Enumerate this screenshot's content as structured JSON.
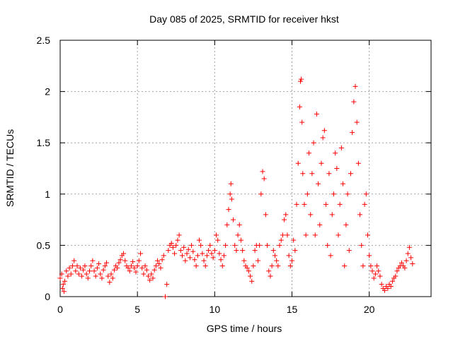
{
  "chart_data": {
    "type": "scatter",
    "title": "Day 085 of 2025, SRMTID for receiver hkst",
    "xlabel": "GPS time / hours",
    "ylabel": "SRMTID / TECUs",
    "xlim": [
      0,
      24
    ],
    "ylim": [
      0,
      2.5
    ],
    "grid": true,
    "marker": "+",
    "marker_color": "#ff0000",
    "x_ticks": [
      0,
      5,
      10,
      15,
      20
    ],
    "x_tick_labels": [
      "0",
      "5",
      "10",
      "15",
      "20"
    ],
    "y_ticks": [
      0,
      0.5,
      1,
      1.5,
      2,
      2.5
    ],
    "y_tick_labels": [
      "0",
      "0.5",
      "1",
      "1.5",
      "2",
      "2.5"
    ],
    "series": [
      {
        "name": "SRMTID",
        "points": [
          [
            0.0,
            0.18
          ],
          [
            0.1,
            0.22
          ],
          [
            0.15,
            0.08
          ],
          [
            0.2,
            0.12
          ],
          [
            0.25,
            0.05
          ],
          [
            0.3,
            0.15
          ],
          [
            0.4,
            0.25
          ],
          [
            0.5,
            0.2
          ],
          [
            0.6,
            0.28
          ],
          [
            0.7,
            0.22
          ],
          [
            0.8,
            0.3
          ],
          [
            0.9,
            0.35
          ],
          [
            1.0,
            0.25
          ],
          [
            1.1,
            0.3
          ],
          [
            1.2,
            0.22
          ],
          [
            1.3,
            0.28
          ],
          [
            1.4,
            0.2
          ],
          [
            1.5,
            0.26
          ],
          [
            1.6,
            0.3
          ],
          [
            1.7,
            0.22
          ],
          [
            1.8,
            0.18
          ],
          [
            1.9,
            0.25
          ],
          [
            2.0,
            0.3
          ],
          [
            2.1,
            0.35
          ],
          [
            2.2,
            0.25
          ],
          [
            2.3,
            0.2
          ],
          [
            2.4,
            0.28
          ],
          [
            2.5,
            0.32
          ],
          [
            2.6,
            0.22
          ],
          [
            2.7,
            0.18
          ],
          [
            2.8,
            0.26
          ],
          [
            2.9,
            0.3
          ],
          [
            3.0,
            0.33
          ],
          [
            3.1,
            0.2
          ],
          [
            3.2,
            0.14
          ],
          [
            3.3,
            0.22
          ],
          [
            3.4,
            0.18
          ],
          [
            3.5,
            0.26
          ],
          [
            3.6,
            0.3
          ],
          [
            3.7,
            0.28
          ],
          [
            3.8,
            0.33
          ],
          [
            3.9,
            0.36
          ],
          [
            4.0,
            0.4
          ],
          [
            4.1,
            0.42
          ],
          [
            4.2,
            0.35
          ],
          [
            4.3,
            0.3
          ],
          [
            4.4,
            0.28
          ],
          [
            4.5,
            0.25
          ],
          [
            4.6,
            0.3
          ],
          [
            4.7,
            0.34
          ],
          [
            4.8,
            0.28
          ],
          [
            4.9,
            0.24
          ],
          [
            5.0,
            0.3
          ],
          [
            5.1,
            0.35
          ],
          [
            5.2,
            0.42
          ],
          [
            5.3,
            0.28
          ],
          [
            5.4,
            0.22
          ],
          [
            5.5,
            0.3
          ],
          [
            5.6,
            0.26
          ],
          [
            5.7,
            0.2
          ],
          [
            5.8,
            0.16
          ],
          [
            5.9,
            0.22
          ],
          [
            6.0,
            0.18
          ],
          [
            6.1,
            0.26
          ],
          [
            6.2,
            0.3
          ],
          [
            6.3,
            0.35
          ],
          [
            6.4,
            0.32
          ],
          [
            6.5,
            0.28
          ],
          [
            6.6,
            0.36
          ],
          [
            6.7,
            0.4
          ],
          [
            6.8,
            0.0
          ],
          [
            6.9,
            0.12
          ],
          [
            7.0,
            0.45
          ],
          [
            7.1,
            0.5
          ],
          [
            7.2,
            0.52
          ],
          [
            7.3,
            0.48
          ],
          [
            7.4,
            0.42
          ],
          [
            7.5,
            0.5
          ],
          [
            7.6,
            0.55
          ],
          [
            7.7,
            0.6
          ],
          [
            7.8,
            0.45
          ],
          [
            7.9,
            0.4
          ],
          [
            8.0,
            0.48
          ],
          [
            8.1,
            0.35
          ],
          [
            8.2,
            0.42
          ],
          [
            8.3,
            0.46
          ],
          [
            8.4,
            0.38
          ],
          [
            8.5,
            0.5
          ],
          [
            8.6,
            0.44
          ],
          [
            8.7,
            0.36
          ],
          [
            8.8,
            0.3
          ],
          [
            8.9,
            0.4
          ],
          [
            9.0,
            0.55
          ],
          [
            9.1,
            0.5
          ],
          [
            9.2,
            0.42
          ],
          [
            9.3,
            0.35
          ],
          [
            9.4,
            0.3
          ],
          [
            9.5,
            0.4
          ],
          [
            9.6,
            0.45
          ],
          [
            9.7,
            0.5
          ],
          [
            9.8,
            0.42
          ],
          [
            9.9,
            0.38
          ],
          [
            10.0,
            0.45
          ],
          [
            10.1,
            0.6
          ],
          [
            10.2,
            0.55
          ],
          [
            10.3,
            0.42
          ],
          [
            10.4,
            0.36
          ],
          [
            10.5,
            0.3
          ],
          [
            10.6,
            0.4
          ],
          [
            10.7,
            0.5
          ],
          [
            10.8,
            0.7
          ],
          [
            10.9,
            0.85
          ],
          [
            11.0,
            1.0
          ],
          [
            11.05,
            1.1
          ],
          [
            11.1,
            0.95
          ],
          [
            11.2,
            0.75
          ],
          [
            11.3,
            0.5
          ],
          [
            11.4,
            0.45
          ],
          [
            11.5,
            0.6
          ],
          [
            11.6,
            0.7
          ],
          [
            11.7,
            0.55
          ],
          [
            11.8,
            0.45
          ],
          [
            11.9,
            0.35
          ],
          [
            12.0,
            0.3
          ],
          [
            12.1,
            0.28
          ],
          [
            12.2,
            0.25
          ],
          [
            12.3,
            0.2
          ],
          [
            12.4,
            0.15
          ],
          [
            12.5,
            0.3
          ],
          [
            12.6,
            0.45
          ],
          [
            12.7,
            0.5
          ],
          [
            12.8,
            0.35
          ],
          [
            12.9,
            0.5
          ],
          [
            13.0,
            1.0
          ],
          [
            13.1,
            1.22
          ],
          [
            13.2,
            1.15
          ],
          [
            13.3,
            0.8
          ],
          [
            13.4,
            0.5
          ],
          [
            13.5,
            0.25
          ],
          [
            13.6,
            0.2
          ],
          [
            13.7,
            0.3
          ],
          [
            13.8,
            0.45
          ],
          [
            13.9,
            0.4
          ],
          [
            14.0,
            0.35
          ],
          [
            14.1,
            0.3
          ],
          [
            14.2,
            0.5
          ],
          [
            14.3,
            0.55
          ],
          [
            14.4,
            0.6
          ],
          [
            14.5,
            0.75
          ],
          [
            14.6,
            0.8
          ],
          [
            14.7,
            0.6
          ],
          [
            14.8,
            0.4
          ],
          [
            14.9,
            0.3
          ],
          [
            15.0,
            0.35
          ],
          [
            15.1,
            0.55
          ],
          [
            15.2,
            0.45
          ],
          [
            15.3,
            0.9
          ],
          [
            15.4,
            1.3
          ],
          [
            15.5,
            1.85
          ],
          [
            15.55,
            2.1
          ],
          [
            15.6,
            2.12
          ],
          [
            15.65,
            1.7
          ],
          [
            15.7,
            1.2
          ],
          [
            15.8,
            0.9
          ],
          [
            15.9,
            0.6
          ],
          [
            16.0,
            1.0
          ],
          [
            16.1,
            1.4
          ],
          [
            16.2,
            0.8
          ],
          [
            16.3,
            1.2
          ],
          [
            16.4,
            1.5
          ],
          [
            16.5,
            0.6
          ],
          [
            16.6,
            1.78
          ],
          [
            16.7,
            1.1
          ],
          [
            16.8,
            0.7
          ],
          [
            16.9,
            1.3
          ],
          [
            17.0,
            1.55
          ],
          [
            17.1,
            1.62
          ],
          [
            17.2,
            0.9
          ],
          [
            17.3,
            0.5
          ],
          [
            17.4,
            1.2
          ],
          [
            17.5,
            0.4
          ],
          [
            17.6,
            0.8
          ],
          [
            17.7,
            1.0
          ],
          [
            17.8,
            1.4
          ],
          [
            17.9,
            1.25
          ],
          [
            18.0,
            0.6
          ],
          [
            18.1,
            0.9
          ],
          [
            18.2,
            1.45
          ],
          [
            18.3,
            1.1
          ],
          [
            18.4,
            0.3
          ],
          [
            18.5,
            0.7
          ],
          [
            18.6,
            1.0
          ],
          [
            18.7,
            0.45
          ],
          [
            18.8,
            1.2
          ],
          [
            18.9,
            1.6
          ],
          [
            19.0,
            1.9
          ],
          [
            19.1,
            2.05
          ],
          [
            19.2,
            1.7
          ],
          [
            19.3,
            1.3
          ],
          [
            19.4,
            0.8
          ],
          [
            19.5,
            0.5
          ],
          [
            19.6,
            0.3
          ],
          [
            19.7,
            0.9
          ],
          [
            19.8,
            1.0
          ],
          [
            19.9,
            0.6
          ],
          [
            20.0,
            0.4
          ],
          [
            20.1,
            0.3
          ],
          [
            20.2,
            0.25
          ],
          [
            20.3,
            0.18
          ],
          [
            20.4,
            0.22
          ],
          [
            20.5,
            0.3
          ],
          [
            20.6,
            0.25
          ],
          [
            20.7,
            0.2
          ],
          [
            20.8,
            0.12
          ],
          [
            20.9,
            0.08
          ],
          [
            21.0,
            0.06
          ],
          [
            21.1,
            0.1
          ],
          [
            21.2,
            0.08
          ],
          [
            21.3,
            0.12
          ],
          [
            21.4,
            0.1
          ],
          [
            21.5,
            0.15
          ],
          [
            21.6,
            0.18
          ],
          [
            21.7,
            0.2
          ],
          [
            21.8,
            0.25
          ],
          [
            21.9,
            0.28
          ],
          [
            22.0,
            0.3
          ],
          [
            22.1,
            0.33
          ],
          [
            22.2,
            0.3
          ],
          [
            22.3,
            0.28
          ],
          [
            22.4,
            0.35
          ],
          [
            22.5,
            0.42
          ],
          [
            22.6,
            0.48
          ],
          [
            22.7,
            0.38
          ],
          [
            22.8,
            0.32
          ]
        ]
      }
    ]
  }
}
